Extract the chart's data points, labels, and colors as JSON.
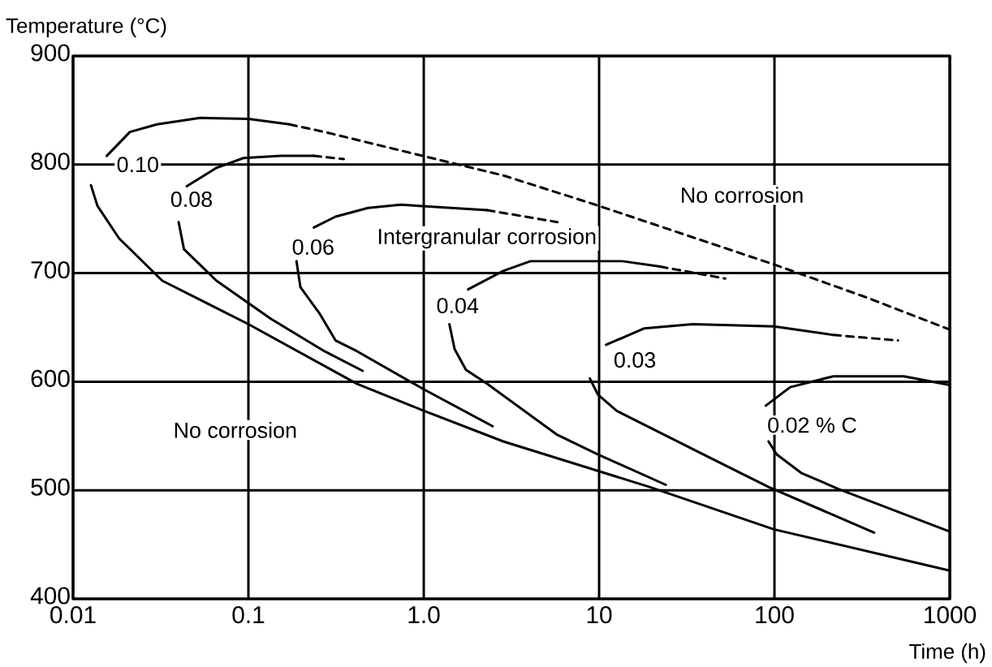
{
  "chart_data": {
    "type": "line",
    "xlabel": "Time (h)",
    "ylabel": "Temperature (°C)",
    "log": "x",
    "grid": true,
    "xlim": [
      0.01,
      1000
    ],
    "ylim": [
      400,
      900
    ],
    "xticks": [
      0.01,
      0.1,
      {
        "value": 1,
        "label": "1.0"
      },
      10,
      100,
      1000
    ],
    "yticks": [
      400,
      500,
      600,
      700,
      800,
      900
    ],
    "series": [
      {
        "color": "#000000",
        "line_style": "solid",
        "x": [
          0.01556,
          0.0211,
          0.0301,
          0.0531,
          0.1,
          0.1716
        ],
        "values": [
          808,
          830,
          837,
          843,
          842,
          837
        ]
      },
      {
        "color": "#000000",
        "line_style": "dashed",
        "x": [
          0.1716,
          0.272,
          1.045,
          2.84,
          9.53,
          99.3,
          330,
          1000
        ],
        "values": [
          837,
          830,
          807,
          790,
          763,
          708,
          678,
          648
        ]
      },
      {
        "color": "#000000",
        "line_style": "solid",
        "x": [
          0.01265,
          0.01377,
          0.0183,
          0.0323,
          0.1,
          0.417,
          1.01,
          2.84,
          19.4,
          99.3,
          1000
        ],
        "values": [
          781,
          762,
          732,
          693,
          653,
          598,
          573,
          545,
          503,
          464,
          426
        ]
      },
      {
        "color": "#000000",
        "line_style": "solid",
        "x": [
          0.0445,
          0.0658,
          0.0938,
          0.154,
          0.236
        ],
        "values": [
          780,
          797,
          806,
          808,
          808
        ]
      },
      {
        "color": "#000000",
        "line_style": "dashed",
        "x": [
          0.236,
          0.35
        ],
        "values": [
          808,
          805
        ]
      },
      {
        "color": "#000000",
        "line_style": "solid",
        "x": [
          0.04,
          0.0429,
          0.0658,
          0.134,
          0.272,
          0.448
        ],
        "values": [
          747,
          722,
          693,
          658,
          628,
          610
        ]
      },
      {
        "color": "#000000",
        "line_style": "solid",
        "x": [
          0.236,
          0.314,
          0.481,
          0.738,
          2.3
        ],
        "values": [
          742,
          752,
          760,
          763,
          758
        ]
      },
      {
        "color": "#000000",
        "line_style": "dashed",
        "x": [
          2.3,
          5.78
        ],
        "values": [
          758,
          747
        ]
      },
      {
        "color": "#000000",
        "line_style": "solid",
        "x": [
          0.188,
          0.198,
          0.254,
          0.314,
          0.417,
          1.0,
          2.47
        ],
        "values": [
          711,
          687,
          663,
          638,
          628,
          593,
          559
        ]
      },
      {
        "color": "#000000",
        "line_style": "solid",
        "x": [
          1.79,
          2.84,
          4.06,
          13.6,
          22.3
        ],
        "values": [
          685,
          702,
          711,
          711,
          706
        ]
      },
      {
        "color": "#000000",
        "line_style": "dashed",
        "x": [
          22.3,
          52.4
        ],
        "values": [
          706,
          695
        ]
      },
      {
        "color": "#000000",
        "line_style": "solid",
        "x": [
          1.4,
          1.5,
          1.74,
          2.3,
          5.78,
          9.86,
          24
        ],
        "values": [
          653,
          630,
          611,
          598,
          551,
          533,
          505
        ]
      },
      {
        "color": "#000000",
        "line_style": "solid",
        "x": [
          10.96,
          18.0,
          34.2,
          99.3,
          217
        ],
        "values": [
          634,
          649,
          653,
          651,
          643
        ]
      },
      {
        "color": "#000000",
        "line_style": "dashed",
        "x": [
          217,
          506
        ],
        "values": [
          643,
          638
        ]
      },
      {
        "color": "#000000",
        "line_style": "solid",
        "x": [
          8.85,
          9.86,
          12.65,
          39.4,
          92.5,
          370
        ],
        "values": [
          603,
          588,
          573,
          533,
          503,
          461
        ]
      },
      {
        "color": "#000000",
        "line_style": "solid",
        "x": [
          89.3,
          123,
          217,
          547,
          1000
        ],
        "values": [
          578,
          595,
          605,
          605,
          597
        ]
      },
      {
        "color": "#000000",
        "line_style": "solid",
        "x": [
          92.5,
          103,
          142,
          233,
          1000
        ],
        "values": [
          545,
          533,
          516,
          501,
          462
        ]
      }
    ],
    "annotations": [
      {
        "text": "0.10",
        "x": 0.0234,
        "y": 800
      },
      {
        "text": "0.08",
        "x": 0.0474,
        "y": 768
      },
      {
        "text": "0.06",
        "x": 0.234,
        "y": 724
      },
      {
        "text": "0.04",
        "x": 1.56,
        "y": 670
      },
      {
        "text": "0.03",
        "x": 16,
        "y": 620
      },
      "0.02 % C",
      "Intergranular corrosion",
      "No corrosion",
      "No corrosion"
    ]
  }
}
